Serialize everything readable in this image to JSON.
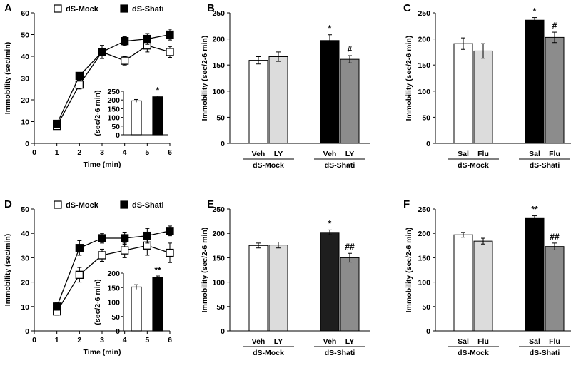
{
  "colors": {
    "white": "#ffffff",
    "black": "#000000",
    "light_gray": "#dcdcdc",
    "dark_black": "#1e1e1e",
    "gray": "#8c8c8c"
  },
  "chart_data": [
    {
      "panel": "A",
      "type": "line",
      "xlabel": "Time (min)",
      "ylabel": "Immobility (sec/min)",
      "xlim": [
        0,
        6
      ],
      "xticks": [
        0,
        1,
        2,
        3,
        4,
        5,
        6
      ],
      "ylim": [
        0,
        60
      ],
      "yticks": [
        0,
        10,
        20,
        30,
        40,
        50,
        60
      ],
      "series": [
        {
          "name": "dS-Mock",
          "marker": "open-square",
          "x": [
            1,
            2,
            3,
            4,
            5,
            6
          ],
          "y": [
            8,
            27,
            42,
            38,
            45,
            42
          ],
          "err": [
            1,
            2,
            3,
            2,
            3,
            2.5
          ]
        },
        {
          "name": "dS-Shati",
          "marker": "filled-square",
          "x": [
            1,
            2,
            3,
            4,
            5,
            6
          ],
          "y": [
            9,
            31,
            42,
            47,
            48,
            50
          ],
          "err": [
            1,
            1.5,
            3,
            2,
            2.5,
            2.5
          ]
        }
      ],
      "inset": {
        "type": "bar",
        "ylabel": "(sec/2-6 min)",
        "ylim": [
          0,
          250
        ],
        "yticks": [
          0,
          50,
          100,
          150,
          200,
          250
        ],
        "values": [
          195,
          218
        ],
        "errors": [
          8,
          5
        ],
        "fills": [
          "white",
          "black"
        ],
        "signif": [
          "",
          "*"
        ]
      }
    },
    {
      "panel": "B",
      "type": "bar",
      "ylabel": "Immobility (sec/2-6 min)",
      "ylim": [
        0,
        250
      ],
      "yticks": [
        0,
        50,
        100,
        150,
        200,
        250
      ],
      "categories": [
        "Veh",
        "LY",
        "Veh",
        "LY"
      ],
      "groups": [
        "dS-Mock",
        "dS-Shati"
      ],
      "values": [
        159,
        166,
        197,
        161
      ],
      "errors": [
        7,
        9,
        11,
        7
      ],
      "fills": [
        "white",
        "light_gray",
        "black",
        "gray"
      ],
      "signif": [
        "",
        "",
        "*",
        "#"
      ]
    },
    {
      "panel": "C",
      "type": "bar",
      "ylabel": "Immobility (sec/2-6 min)",
      "ylim": [
        0,
        250
      ],
      "yticks": [
        0,
        50,
        100,
        150,
        200,
        250
      ],
      "categories": [
        "Sal",
        "Flu",
        "Sal",
        "Flu"
      ],
      "groups": [
        "dS-Mock",
        "dS-Shati"
      ],
      "values": [
        191,
        177,
        236,
        203
      ],
      "errors": [
        11,
        14,
        5,
        10
      ],
      "fills": [
        "white",
        "light_gray",
        "black",
        "gray"
      ],
      "signif": [
        "",
        "",
        "*",
        "#"
      ]
    },
    {
      "panel": "D",
      "type": "line",
      "xlabel": "Time (min)",
      "ylabel": "Immobility (sec/min)",
      "xlim": [
        0,
        6
      ],
      "xticks": [
        0,
        1,
        2,
        3,
        4,
        5,
        6
      ],
      "ylim": [
        0,
        50
      ],
      "yticks": [
        0,
        10,
        20,
        30,
        40,
        50
      ],
      "series": [
        {
          "name": "dS-Mock",
          "marker": "open-square",
          "x": [
            1,
            2,
            3,
            4,
            5,
            6
          ],
          "y": [
            8,
            23,
            31,
            33,
            35,
            32
          ],
          "err": [
            1.5,
            3,
            2.5,
            3,
            4,
            4
          ]
        },
        {
          "name": "dS-Shati",
          "marker": "filled-square",
          "x": [
            1,
            2,
            3,
            4,
            5,
            6
          ],
          "y": [
            10,
            34,
            38,
            38,
            39,
            41
          ],
          "err": [
            1.5,
            3,
            2,
            2.5,
            3,
            2
          ]
        }
      ],
      "inset": {
        "type": "bar",
        "ylabel": "(sec/2-6 min)",
        "ylim": [
          0,
          200
        ],
        "yticks": [
          0,
          50,
          100,
          150,
          200
        ],
        "values": [
          152,
          185
        ],
        "errors": [
          8,
          5
        ],
        "fills": [
          "white",
          "black"
        ],
        "signif": [
          "",
          "**"
        ]
      }
    },
    {
      "panel": "E",
      "type": "bar",
      "ylabel": "Immobility (sec/2-6 min)",
      "ylim": [
        0,
        250
      ],
      "yticks": [
        0,
        50,
        100,
        150,
        200,
        250
      ],
      "categories": [
        "Veh",
        "LY",
        "Veh",
        "LY"
      ],
      "groups": [
        "dS-Mock",
        "dS-Shati"
      ],
      "values": [
        175,
        176,
        202,
        150
      ],
      "errors": [
        5,
        6,
        5,
        9
      ],
      "fills": [
        "white",
        "light_gray",
        "dark_black",
        "gray"
      ],
      "signif": [
        "",
        "",
        "*",
        "##"
      ]
    },
    {
      "panel": "F",
      "type": "bar",
      "ylabel": "Immobility (sec/2-6 min)",
      "ylim": [
        0,
        250
      ],
      "yticks": [
        0,
        50,
        100,
        150,
        200,
        250
      ],
      "categories": [
        "Sal",
        "Flu",
        "Sal",
        "Flu"
      ],
      "groups": [
        "dS-Mock",
        "dS-Shati"
      ],
      "values": [
        197,
        184,
        232,
        173
      ],
      "errors": [
        5,
        6,
        4,
        7
      ],
      "fills": [
        "white",
        "light_gray",
        "black",
        "gray"
      ],
      "signif": [
        "",
        "",
        "**",
        "##"
      ]
    }
  ]
}
